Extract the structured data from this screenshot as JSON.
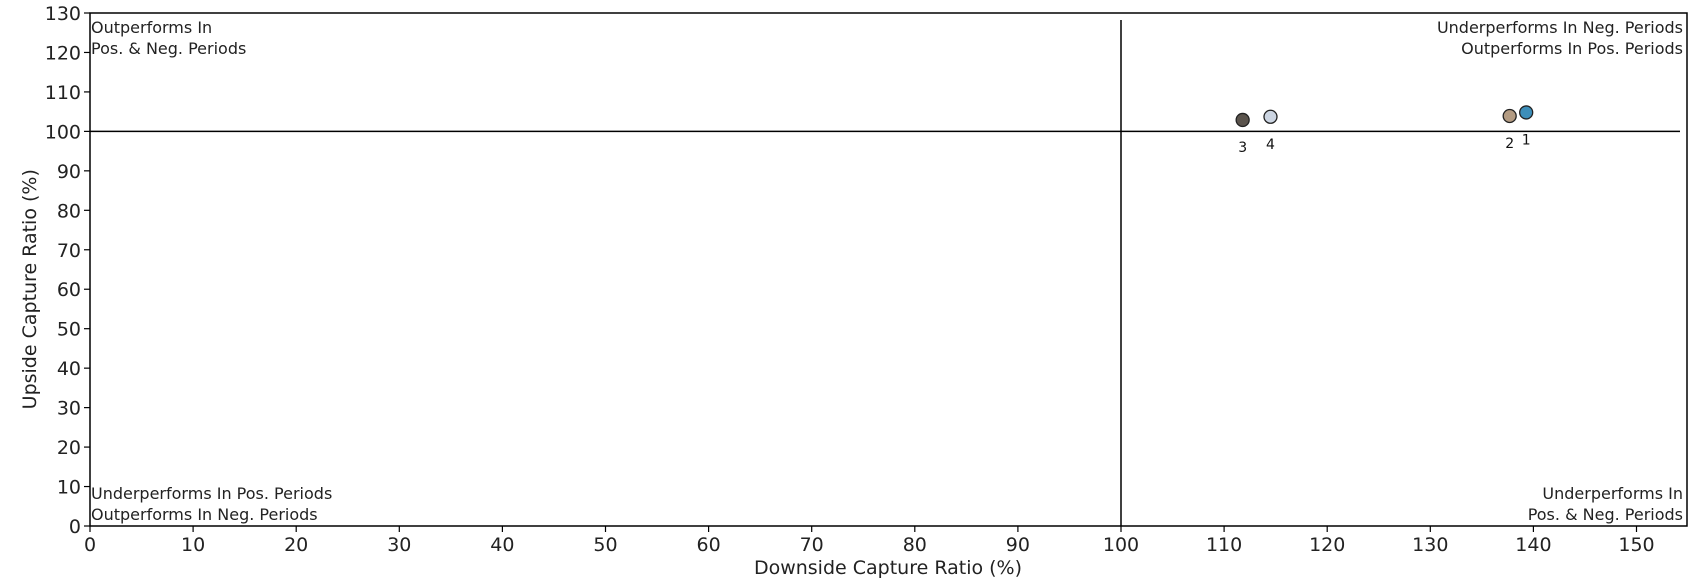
{
  "chart_data": {
    "type": "scatter",
    "title": "",
    "xlabel": "Downside Capture Ratio (%)",
    "ylabel": "Upside Capture Ratio (%)",
    "xlim": [
      0,
      155
    ],
    "ylim": [
      0,
      130
    ],
    "xticks": [
      "0",
      "10",
      "20",
      "30",
      "40",
      "50",
      "60",
      "70",
      "80",
      "90",
      "100",
      "110",
      "120",
      "130",
      "140",
      "150"
    ],
    "yticks": [
      "0",
      "10",
      "20",
      "30",
      "40",
      "50",
      "60",
      "70",
      "80",
      "90",
      "100",
      "110",
      "120",
      "130"
    ],
    "reference_lines": {
      "x": 100,
      "y": 100
    },
    "grid": false,
    "quadrant_labels": {
      "top_left": [
        "Outperforms In",
        "Pos. & Neg. Periods"
      ],
      "top_right": [
        "Underperforms In Neg. Periods",
        "Outperforms In Pos. Periods"
      ],
      "bottom_left": [
        "Underperforms In Pos. Periods",
        "Outperforms In Neg. Periods"
      ],
      "bottom_right": [
        "Underperforms In",
        "Pos. & Neg. Periods"
      ]
    },
    "points": [
      {
        "label": "1",
        "x": 139.3,
        "y": 104.8,
        "color": "#3d8eb9"
      },
      {
        "label": "2",
        "x": 137.7,
        "y": 103.9,
        "color": "#b39b82"
      },
      {
        "label": "3",
        "x": 111.8,
        "y": 102.9,
        "color": "#5a534c"
      },
      {
        "label": "4",
        "x": 114.5,
        "y": 103.7,
        "color": "#ccd5e2"
      }
    ]
  }
}
